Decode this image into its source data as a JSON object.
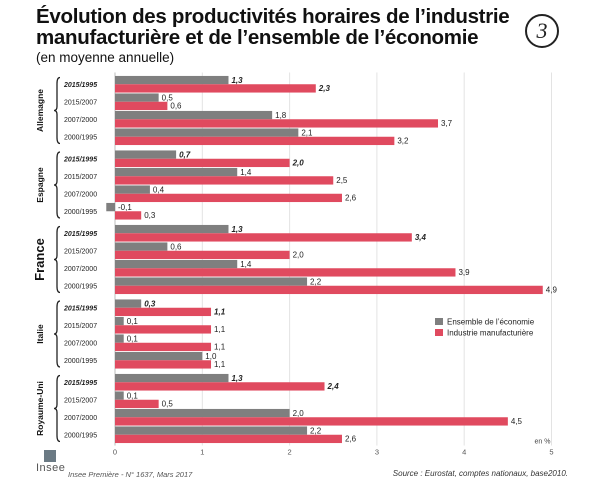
{
  "header": {
    "title": "Évolution des productivités horaires de l’industrie manufacturière et de l’ensemble de l’économie",
    "subtitle": "(en moyenne annuelle)",
    "badge": "3"
  },
  "footer": {
    "logo": "Insee",
    "publication": "Insee Première - N° 1637, Mars 2017",
    "source": "Source : Eurostat, comptes nationaux, base2010."
  },
  "colors": {
    "ensemble": "#7f7f7f",
    "industrie": "#e04a5f"
  },
  "chart_data": {
    "type": "bar",
    "orientation": "horizontal",
    "unit_label": "en %",
    "xlim": [
      -0.2,
      5
    ],
    "x_ticks": [
      "0",
      "1",
      "2",
      "3",
      "4",
      "5"
    ],
    "grid": true,
    "legend_position": "right",
    "series_names": [
      "Ensemble de l’économie",
      "Industrie manufacturière"
    ],
    "groups": [
      {
        "country": "Allemagne",
        "periods": [
          {
            "label": "2015/1995",
            "bold": true,
            "ensemble": 1.3,
            "ensemble_label": "1,3",
            "industrie": 2.3,
            "industrie_label": "2,3"
          },
          {
            "label": "2015/2007",
            "bold": false,
            "ensemble": 0.5,
            "ensemble_label": "0,5",
            "industrie": 0.6,
            "industrie_label": "0,6"
          },
          {
            "label": "2007/2000",
            "bold": false,
            "ensemble": 1.8,
            "ensemble_label": "1,8",
            "industrie": 3.7,
            "industrie_label": "3,7"
          },
          {
            "label": "2000/1995",
            "bold": false,
            "ensemble": 2.1,
            "ensemble_label": "2,1",
            "industrie": 3.2,
            "industrie_label": "3,2"
          }
        ]
      },
      {
        "country": "Espagne",
        "periods": [
          {
            "label": "2015/1995",
            "bold": true,
            "ensemble": 0.7,
            "ensemble_label": "0,7",
            "industrie": 2.0,
            "industrie_label": "2,0"
          },
          {
            "label": "2015/2007",
            "bold": false,
            "ensemble": 1.4,
            "ensemble_label": "1,4",
            "industrie": 2.5,
            "industrie_label": "2,5"
          },
          {
            "label": "2007/2000",
            "bold": false,
            "ensemble": 0.4,
            "ensemble_label": "0,4",
            "industrie": 2.6,
            "industrie_label": "2,6"
          },
          {
            "label": "2000/1995",
            "bold": false,
            "ensemble": -0.1,
            "ensemble_label": "-0,1",
            "industrie": 0.3,
            "industrie_label": "0,3"
          }
        ]
      },
      {
        "country": "France",
        "periods": [
          {
            "label": "2015/1995",
            "bold": true,
            "ensemble": 1.3,
            "ensemble_label": "1,3",
            "industrie": 3.4,
            "industrie_label": "3,4"
          },
          {
            "label": "2015/2007",
            "bold": false,
            "ensemble": 0.6,
            "ensemble_label": "0,6",
            "industrie": 2.0,
            "industrie_label": "2,0"
          },
          {
            "label": "2007/2000",
            "bold": false,
            "ensemble": 1.4,
            "ensemble_label": "1,4",
            "industrie": 3.9,
            "industrie_label": "3,9"
          },
          {
            "label": "2000/1995",
            "bold": false,
            "ensemble": 2.2,
            "ensemble_label": "2,2",
            "industrie": 4.9,
            "industrie_label": "4,9"
          }
        ]
      },
      {
        "country": "Italie",
        "periods": [
          {
            "label": "2015/1995",
            "bold": true,
            "ensemble": 0.3,
            "ensemble_label": "0,3",
            "industrie": 1.1,
            "industrie_label": "1,1"
          },
          {
            "label": "2015/2007",
            "bold": false,
            "ensemble": 0.1,
            "ensemble_label": "0,1",
            "industrie": 1.1,
            "industrie_label": "1,1"
          },
          {
            "label": "2007/2000",
            "bold": false,
            "ensemble": 0.1,
            "ensemble_label": "0,1",
            "industrie": 1.1,
            "industrie_label": "1,1"
          },
          {
            "label": "2000/1995",
            "bold": false,
            "ensemble": 1.0,
            "ensemble_label": "1,0",
            "industrie": 1.1,
            "industrie_label": "1,1"
          }
        ]
      },
      {
        "country": "Royaume-Uni",
        "periods": [
          {
            "label": "2015/1995",
            "bold": true,
            "ensemble": 1.3,
            "ensemble_label": "1,3",
            "industrie": 2.4,
            "industrie_label": "2,4"
          },
          {
            "label": "2015/2007",
            "bold": false,
            "ensemble": 0.1,
            "ensemble_label": "0,1",
            "industrie": 0.5,
            "industrie_label": "0,5"
          },
          {
            "label": "2007/2000",
            "bold": false,
            "ensemble": 2.0,
            "ensemble_label": "2,0",
            "industrie": 4.5,
            "industrie_label": "4,5"
          },
          {
            "label": "2000/1995",
            "bold": false,
            "ensemble": 2.2,
            "ensemble_label": "2,2",
            "industrie": 2.6,
            "industrie_label": "2,6"
          }
        ]
      }
    ]
  }
}
